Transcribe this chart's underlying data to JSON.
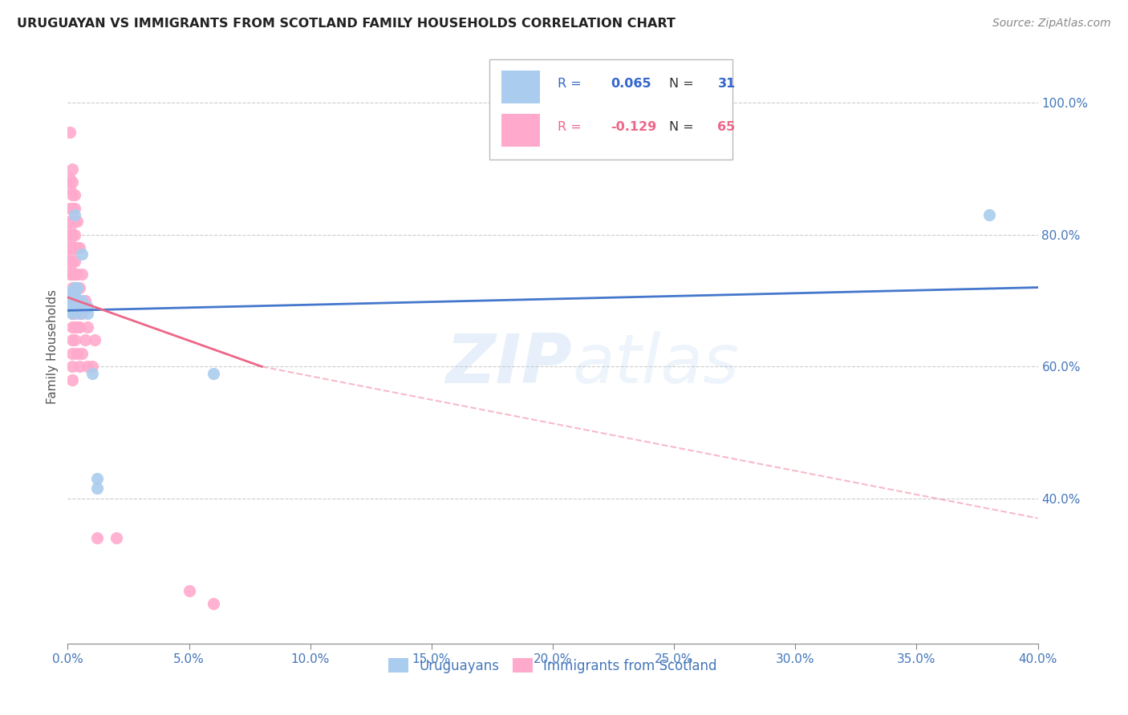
{
  "title": "URUGUAYAN VS IMMIGRANTS FROM SCOTLAND FAMILY HOUSEHOLDS CORRELATION CHART",
  "source": "Source: ZipAtlas.com",
  "ylabel": "Family Households",
  "right_yticks": [
    "100.0%",
    "80.0%",
    "60.0%",
    "40.0%"
  ],
  "right_ytick_vals": [
    1.0,
    0.8,
    0.6,
    0.4
  ],
  "xlim": [
    0.0,
    0.4
  ],
  "ylim": [
    0.18,
    1.08
  ],
  "legend1_R": "0.065",
  "legend1_N": "31",
  "legend2_R": "-0.129",
  "legend2_N": "65",
  "blue_color": "#AACCEE",
  "pink_color": "#FFAACC",
  "blue_line_color": "#4477CC",
  "pink_line_color": "#EE6688",
  "watermark": "ZIPatlas",
  "uruguayan_points": [
    [
      0.001,
      0.685
    ],
    [
      0.001,
      0.695
    ],
    [
      0.001,
      0.7
    ],
    [
      0.001,
      0.705
    ],
    [
      0.002,
      0.68
    ],
    [
      0.002,
      0.69
    ],
    [
      0.002,
      0.695
    ],
    [
      0.002,
      0.7
    ],
    [
      0.002,
      0.71
    ],
    [
      0.002,
      0.715
    ],
    [
      0.003,
      0.685
    ],
    [
      0.003,
      0.695
    ],
    [
      0.003,
      0.7
    ],
    [
      0.003,
      0.71
    ],
    [
      0.003,
      0.72
    ],
    [
      0.003,
      0.83
    ],
    [
      0.004,
      0.69
    ],
    [
      0.004,
      0.695
    ],
    [
      0.004,
      0.7
    ],
    [
      0.004,
      0.72
    ],
    [
      0.005,
      0.68
    ],
    [
      0.005,
      0.695
    ],
    [
      0.006,
      0.7
    ],
    [
      0.006,
      0.77
    ],
    [
      0.008,
      0.68
    ],
    [
      0.008,
      0.69
    ],
    [
      0.01,
      0.59
    ],
    [
      0.012,
      0.43
    ],
    [
      0.012,
      0.415
    ],
    [
      0.06,
      0.59
    ],
    [
      0.38,
      0.83
    ]
  ],
  "scotland_points": [
    [
      0.001,
      0.955
    ],
    [
      0.001,
      0.885
    ],
    [
      0.001,
      0.87
    ],
    [
      0.001,
      0.84
    ],
    [
      0.001,
      0.82
    ],
    [
      0.001,
      0.81
    ],
    [
      0.001,
      0.8
    ],
    [
      0.001,
      0.79
    ],
    [
      0.001,
      0.78
    ],
    [
      0.001,
      0.77
    ],
    [
      0.001,
      0.76
    ],
    [
      0.001,
      0.75
    ],
    [
      0.001,
      0.74
    ],
    [
      0.002,
      0.9
    ],
    [
      0.002,
      0.88
    ],
    [
      0.002,
      0.86
    ],
    [
      0.002,
      0.84
    ],
    [
      0.002,
      0.82
    ],
    [
      0.002,
      0.8
    ],
    [
      0.002,
      0.78
    ],
    [
      0.002,
      0.76
    ],
    [
      0.002,
      0.74
    ],
    [
      0.002,
      0.72
    ],
    [
      0.002,
      0.7
    ],
    [
      0.002,
      0.68
    ],
    [
      0.002,
      0.66
    ],
    [
      0.002,
      0.64
    ],
    [
      0.002,
      0.62
    ],
    [
      0.002,
      0.6
    ],
    [
      0.002,
      0.58
    ],
    [
      0.003,
      0.86
    ],
    [
      0.003,
      0.84
    ],
    [
      0.003,
      0.82
    ],
    [
      0.003,
      0.8
    ],
    [
      0.003,
      0.78
    ],
    [
      0.003,
      0.76
    ],
    [
      0.003,
      0.74
    ],
    [
      0.003,
      0.72
    ],
    [
      0.003,
      0.7
    ],
    [
      0.003,
      0.68
    ],
    [
      0.003,
      0.66
    ],
    [
      0.003,
      0.64
    ],
    [
      0.004,
      0.82
    ],
    [
      0.004,
      0.78
    ],
    [
      0.004,
      0.74
    ],
    [
      0.004,
      0.7
    ],
    [
      0.004,
      0.66
    ],
    [
      0.004,
      0.62
    ],
    [
      0.005,
      0.78
    ],
    [
      0.005,
      0.72
    ],
    [
      0.005,
      0.66
    ],
    [
      0.005,
      0.6
    ],
    [
      0.006,
      0.74
    ],
    [
      0.006,
      0.68
    ],
    [
      0.006,
      0.62
    ],
    [
      0.007,
      0.7
    ],
    [
      0.007,
      0.64
    ],
    [
      0.008,
      0.66
    ],
    [
      0.008,
      0.6
    ],
    [
      0.01,
      0.6
    ],
    [
      0.011,
      0.64
    ],
    [
      0.012,
      0.34
    ],
    [
      0.02,
      0.34
    ],
    [
      0.05,
      0.26
    ],
    [
      0.06,
      0.24
    ]
  ],
  "blue_trend": [
    0.0,
    0.4,
    0.685,
    0.72
  ],
  "pink_trend_solid": [
    0.0,
    0.08,
    0.705,
    0.6
  ],
  "pink_trend_dash": [
    0.08,
    0.4,
    0.6,
    0.37
  ]
}
